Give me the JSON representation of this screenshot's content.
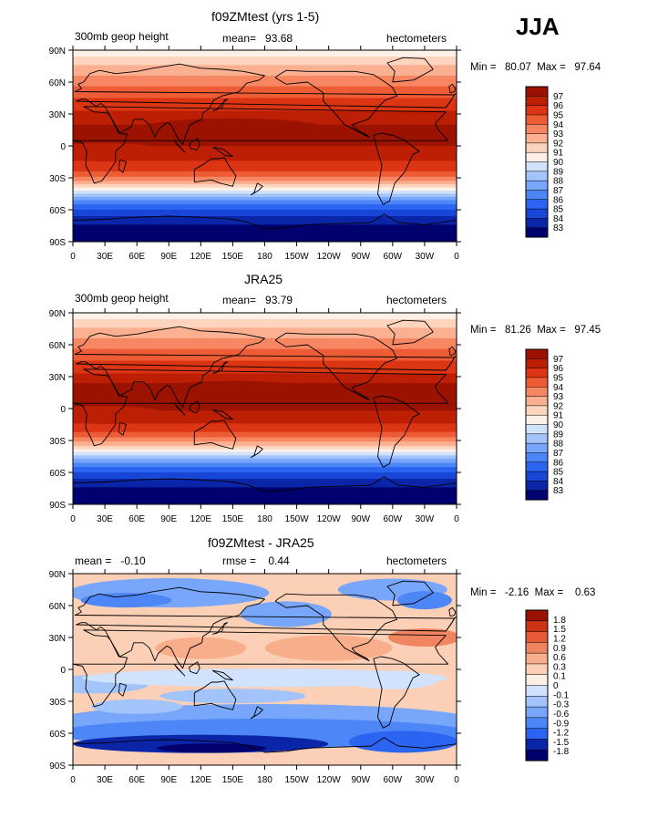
{
  "season": "JJA",
  "lat_labels": [
    "90N",
    "60N",
    "30N",
    "0",
    "30S",
    "60S",
    "90S"
  ],
  "lon_labels": [
    "0",
    "30E",
    "60E",
    "90E",
    "120E",
    "150E",
    "180",
    "150W",
    "120W",
    "90W",
    "60W",
    "30W",
    "0"
  ],
  "colors": {
    "full": [
      "#00006e",
      "#0b25a8",
      "#1846d6",
      "#2a64f0",
      "#4d86f7",
      "#77a6fa",
      "#a3c4fb",
      "#d0e2fc",
      "#fdf0e6",
      "#fdd5bf",
      "#fbb092",
      "#f78762",
      "#ee5c36",
      "#dc3514",
      "#bd1f05",
      "#9b1300"
    ],
    "diff": [
      "#00006e",
      "#0b25a8",
      "#2a64f0",
      "#4d86f7",
      "#77a6fa",
      "#a3c4fb",
      "#d0e2fc",
      "#fdf0e6",
      "#fbd0b6",
      "#f8ad8b",
      "#f18562",
      "#e65a38",
      "#cc3414",
      "#9b1300"
    ]
  },
  "panels": [
    {
      "title": "f09ZMtest (yrs 1-5)",
      "left_text": "300mb geop height",
      "mid_text": "mean=   93.68",
      "right_text": "hectometers",
      "minmax": "Min =   80.07  Max =   97.64",
      "colorbar_labels": [
        "97",
        "96",
        "95",
        "94",
        "93",
        "92",
        "91",
        "90",
        "89",
        "88",
        "87",
        "86",
        "85",
        "84",
        "83"
      ]
    },
    {
      "title": "JRA25",
      "left_text": "300mb geop height",
      "mid_text": "mean=   93.79",
      "right_text": "hectometers",
      "minmax": "Min =   81.26  Max =   97.45",
      "colorbar_labels": [
        "97",
        "96",
        "95",
        "94",
        "93",
        "92",
        "91",
        "90",
        "89",
        "88",
        "87",
        "86",
        "85",
        "84",
        "83"
      ]
    },
    {
      "title": "f09ZMtest - JRA25",
      "left_text": "mean =   -0.10",
      "mid_text": "rmse =    0.44",
      "right_text": "hectometers",
      "minmax": "Min =   -2.16  Max =    0.63",
      "colorbar_labels": [
        "1.8",
        "1.5",
        "1.2",
        "0.9",
        "0.6",
        "0.3",
        "0.1",
        "0",
        "-0.1",
        "-0.3",
        "-0.6",
        "-0.9",
        "-1.2",
        "-1.5",
        "-1.8"
      ]
    }
  ]
}
